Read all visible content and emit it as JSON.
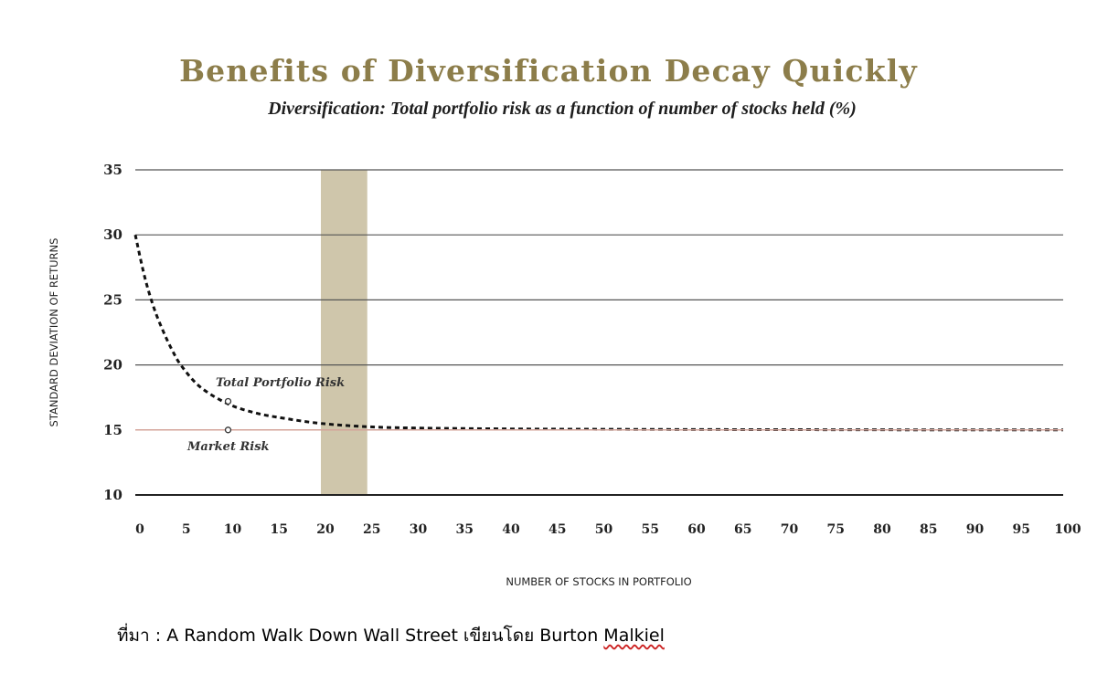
{
  "chart_data": {
    "type": "line",
    "title": "Benefits of Diversification Decay Quickly",
    "subtitle": "Diversification: Total portfolio risk as a function of number of stocks held (%)",
    "xlabel": "NUMBER OF STOCKS IN PORTFOLIO",
    "ylabel": "STANDARD DEVIATION OF RETURNS",
    "xlim": [
      0,
      100
    ],
    "ylim": [
      10,
      35
    ],
    "x_ticks": [
      "0",
      "5",
      "10",
      "15",
      "20",
      "25",
      "30",
      "35",
      "40",
      "45",
      "50",
      "55",
      "60",
      "65",
      "70",
      "75",
      "80",
      "85",
      "90",
      "95",
      "100"
    ],
    "y_ticks": [
      "35",
      "30",
      "25",
      "20",
      "15",
      "10"
    ],
    "grid": true,
    "shaded_region": {
      "x_start": 20,
      "x_end": 25,
      "color": "#cfc6ab"
    },
    "series": [
      {
        "name": "Total Portfolio Risk",
        "style": "dashed",
        "color": "#111111",
        "x": [
          0,
          1,
          2,
          3,
          4,
          5,
          7,
          10,
          13,
          16,
          20,
          25,
          30,
          40,
          50,
          60,
          70,
          80,
          90,
          100
        ],
        "values": [
          30.0,
          26.8,
          24.4,
          22.6,
          21.1,
          19.9,
          18.3,
          17.0,
          16.3,
          15.9,
          15.5,
          15.25,
          15.15,
          15.08,
          15.05,
          15.03,
          15.02,
          15.01,
          15.0,
          15.0
        ]
      },
      {
        "name": "Market Risk",
        "style": "solid",
        "color": "#d4a49a",
        "x": [
          0,
          100
        ],
        "values": [
          15,
          15
        ]
      }
    ],
    "annotations": [
      {
        "text": "Total Portfolio Risk",
        "x": 10,
        "y": 17.2
      },
      {
        "text": "Market Risk",
        "x": 10,
        "y": 15
      }
    ]
  },
  "source": {
    "prefix": "ที่มา : A Random Walk Down Wall Street เขียนโดย Burton ",
    "underlined": "Malkiel"
  }
}
